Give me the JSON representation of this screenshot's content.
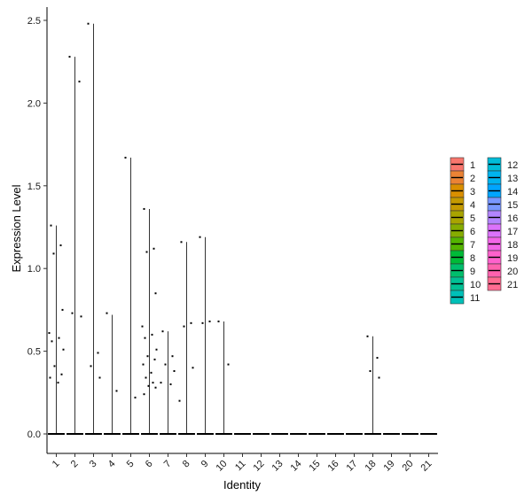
{
  "chart_data": {
    "type": "violin",
    "xlabel": "Identity",
    "ylabel": "Expression Level",
    "categories": [
      "1",
      "2",
      "3",
      "4",
      "5",
      "6",
      "7",
      "8",
      "9",
      "10",
      "11",
      "12",
      "13",
      "14",
      "15",
      "16",
      "17",
      "18",
      "19",
      "20",
      "21"
    ],
    "yticks": [
      "0.0",
      "0.5",
      "1.0",
      "1.5",
      "2.0",
      "2.5"
    ],
    "ylim": [
      -0.1,
      2.6
    ],
    "colors": [
      "#F8766D",
      "#EB8335",
      "#DA8F00",
      "#C49A00",
      "#A9A400",
      "#86AC00",
      "#53B400",
      "#00BA38",
      "#00BE6C",
      "#00C094",
      "#00C0B8",
      "#00BCD8",
      "#00B4EF",
      "#00A5FF",
      "#7997FF",
      "#B385FF",
      "#DB72FB",
      "#F265E7",
      "#FF61CC",
      "#FF62AE",
      "#FF6C91"
    ],
    "violin_max": [
      1.26,
      2.28,
      2.48,
      0.72,
      1.67,
      1.36,
      0.62,
      1.16,
      1.19,
      0.68,
      0,
      0,
      0,
      0,
      0,
      0,
      0,
      0.59,
      0,
      0,
      0
    ],
    "points": [
      {
        "x": 1,
        "y": [
          1.26,
          1.14,
          1.09,
          0.75,
          0.61,
          0.58,
          0.56,
          0.51,
          0.41,
          0.36,
          0.34,
          0.31
        ]
      },
      {
        "x": 2,
        "y": [
          2.28,
          2.13,
          0.73,
          0.71
        ]
      },
      {
        "x": 3,
        "y": [
          2.48,
          0.49,
          0.41,
          0.34
        ]
      },
      {
        "x": 4,
        "y": [
          0.73,
          0.26
        ]
      },
      {
        "x": 5,
        "y": [
          1.67,
          0.22
        ]
      },
      {
        "x": 6,
        "y": [
          1.36,
          1.12,
          1.1,
          0.85,
          0.65,
          0.6,
          0.58,
          0.51,
          0.47,
          0.45,
          0.42,
          0.37,
          0.34,
          0.31,
          0.29,
          0.28,
          0.24
        ]
      },
      {
        "x": 7,
        "y": [
          0.62,
          0.47,
          0.42,
          0.38,
          0.31,
          0.3
        ]
      },
      {
        "x": 8,
        "y": [
          1.16,
          0.67,
          0.65,
          0.4,
          0.2
        ]
      },
      {
        "x": 9,
        "y": [
          1.19,
          0.68,
          0.67
        ]
      },
      {
        "x": 10,
        "y": [
          0.68,
          0.42
        ]
      },
      {
        "x": 18,
        "y": [
          0.59,
          0.46,
          0.38,
          0.34
        ]
      }
    ]
  }
}
